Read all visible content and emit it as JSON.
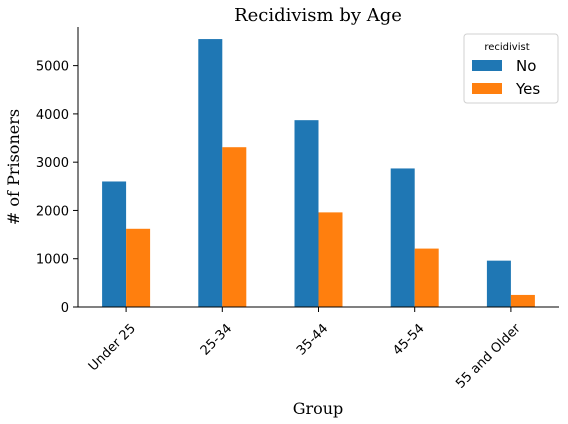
{
  "chart_data": {
    "type": "bar",
    "title": "Recidivism by Age",
    "xlabel": "Group",
    "ylabel": "# of Prisoners",
    "categories": [
      "Under 25",
      "25-34",
      "35-44",
      "45-54",
      "55 and Older"
    ],
    "series": [
      {
        "name": "No",
        "color": "#1f77b4",
        "values": [
          2600,
          5550,
          3870,
          2870,
          960
        ]
      },
      {
        "name": "Yes",
        "color": "#ff7f0e",
        "values": [
          1620,
          3310,
          1960,
          1210,
          250
        ]
      }
    ],
    "ylim": [
      0,
      5800
    ],
    "yticks": [
      0,
      1000,
      2000,
      3000,
      4000,
      5000
    ],
    "ytick_labels": [
      "0",
      "1000",
      "2000",
      "3000",
      "4000",
      "5000"
    ],
    "legend": {
      "title": "recidivist",
      "placement": "top-right"
    },
    "grid": false
  }
}
